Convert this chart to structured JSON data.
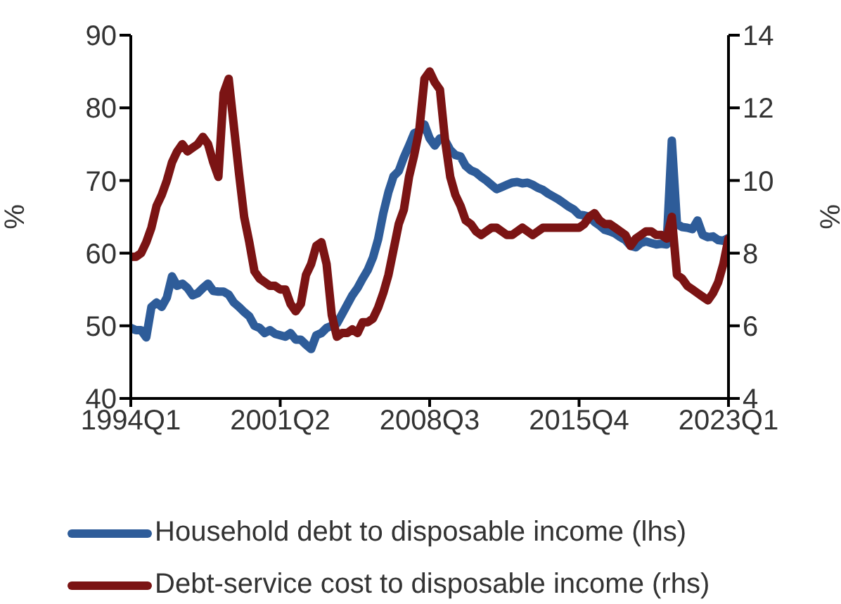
{
  "chart_data": {
    "type": "line",
    "ylabel": "%",
    "y2label": "%",
    "legend": "bottom",
    "categories": [
      "1994Q1",
      null,
      null,
      null,
      null,
      null,
      null,
      null,
      null,
      null,
      null,
      null,
      null,
      null,
      null,
      null,
      null,
      null,
      null,
      null,
      null,
      null,
      null,
      null,
      null,
      null,
      null,
      null,
      null,
      "2001Q2",
      null,
      null,
      null,
      null,
      null,
      null,
      null,
      null,
      null,
      null,
      null,
      null,
      null,
      null,
      null,
      null,
      null,
      null,
      null,
      null,
      null,
      null,
      null,
      null,
      null,
      null,
      null,
      null,
      "2008Q3",
      null,
      null,
      null,
      null,
      null,
      null,
      null,
      null,
      null,
      null,
      null,
      null,
      null,
      null,
      null,
      null,
      null,
      null,
      null,
      null,
      null,
      null,
      null,
      null,
      null,
      null,
      null,
      null,
      "2015Q4",
      null,
      null,
      null,
      null,
      null,
      null,
      null,
      null,
      null,
      null,
      null,
      null,
      null,
      null,
      null,
      null,
      null,
      null,
      null,
      null,
      null,
      null,
      null,
      null,
      null,
      null,
      null,
      null,
      "2023Q1"
    ],
    "series": [
      {
        "name": "Household debt to disposable income (lhs)",
        "color": "#2e5c99",
        "values": [
          49.7,
          49.4,
          49.4,
          48.4,
          52.6,
          53.2,
          52.6,
          53.9,
          56.8,
          55.5,
          55.8,
          55.2,
          54.2,
          54.5,
          55.2,
          55.8,
          54.8,
          54.7,
          54.7,
          54.3,
          53.2,
          52.6,
          51.9,
          51.3,
          50.0,
          49.7,
          49.0,
          49.4,
          48.9,
          48.7,
          48.5,
          49.0,
          48.1,
          48.1,
          47.4,
          46.8,
          48.7,
          49.0,
          49.7,
          50.0,
          50.3,
          51.6,
          52.9,
          54.2,
          55.2,
          56.5,
          57.7,
          59.4,
          61.9,
          65.5,
          68.4,
          70.6,
          71.3,
          73.2,
          74.8,
          76.5,
          76.8,
          77.7,
          75.8,
          74.8,
          75.8,
          75.5,
          74.2,
          73.5,
          73.3,
          72.0,
          71.4,
          71.1,
          70.5,
          70.0,
          69.4,
          68.8,
          69.1,
          69.4,
          69.7,
          69.8,
          69.6,
          69.7,
          69.4,
          69.0,
          68.7,
          68.2,
          67.8,
          67.4,
          66.9,
          66.4,
          66.0,
          65.3,
          65.2,
          65.0,
          64.3,
          63.8,
          63.2,
          63.0,
          62.7,
          62.2,
          61.8,
          61.0,
          60.8,
          61.4,
          61.6,
          61.4,
          61.2,
          61.3,
          61.2,
          75.5,
          64.0,
          63.6,
          63.5,
          63.3,
          64.5,
          62.5,
          62.2,
          62.3,
          61.8,
          61.7,
          62.1
        ]
      },
      {
        "name": "Debt-service cost to disposable income (rhs)",
        "color": "#7b1414",
        "axis": "y2",
        "values": [
          7.9,
          7.9,
          8.0,
          8.3,
          8.7,
          9.3,
          9.6,
          10.0,
          10.5,
          10.8,
          11.0,
          10.8,
          10.9,
          11.0,
          11.2,
          11.0,
          10.5,
          10.1,
          12.4,
          12.8,
          11.5,
          10.2,
          9.0,
          8.3,
          7.5,
          7.3,
          7.2,
          7.1,
          7.1,
          7.0,
          7.0,
          6.6,
          6.4,
          6.6,
          7.4,
          7.7,
          8.2,
          8.3,
          7.7,
          6.3,
          5.7,
          5.8,
          5.8,
          5.9,
          5.8,
          6.1,
          6.1,
          6.2,
          6.5,
          6.9,
          7.4,
          8.1,
          8.8,
          9.2,
          10.1,
          10.7,
          11.4,
          12.8,
          13.0,
          12.7,
          12.5,
          11.1,
          10.1,
          9.6,
          9.3,
          8.9,
          8.8,
          8.6,
          8.5,
          8.6,
          8.7,
          8.7,
          8.6,
          8.5,
          8.5,
          8.6,
          8.7,
          8.6,
          8.5,
          8.6,
          8.7,
          8.7,
          8.7,
          8.7,
          8.7,
          8.7,
          8.7,
          8.7,
          8.8,
          9.0,
          9.1,
          8.9,
          8.8,
          8.8,
          8.7,
          8.6,
          8.5,
          8.2,
          8.4,
          8.5,
          8.6,
          8.6,
          8.5,
          8.5,
          8.4,
          9.0,
          7.4,
          7.3,
          7.1,
          7.0,
          6.9,
          6.8,
          6.7,
          6.9,
          7.2,
          7.7,
          8.4
        ]
      }
    ],
    "ylim": [
      40,
      90
    ],
    "yticks": [
      40,
      50,
      60,
      70,
      80,
      90
    ],
    "y2lim": [
      4,
      14
    ],
    "y2ticks": [
      4,
      6,
      8,
      10,
      12,
      14
    ]
  }
}
